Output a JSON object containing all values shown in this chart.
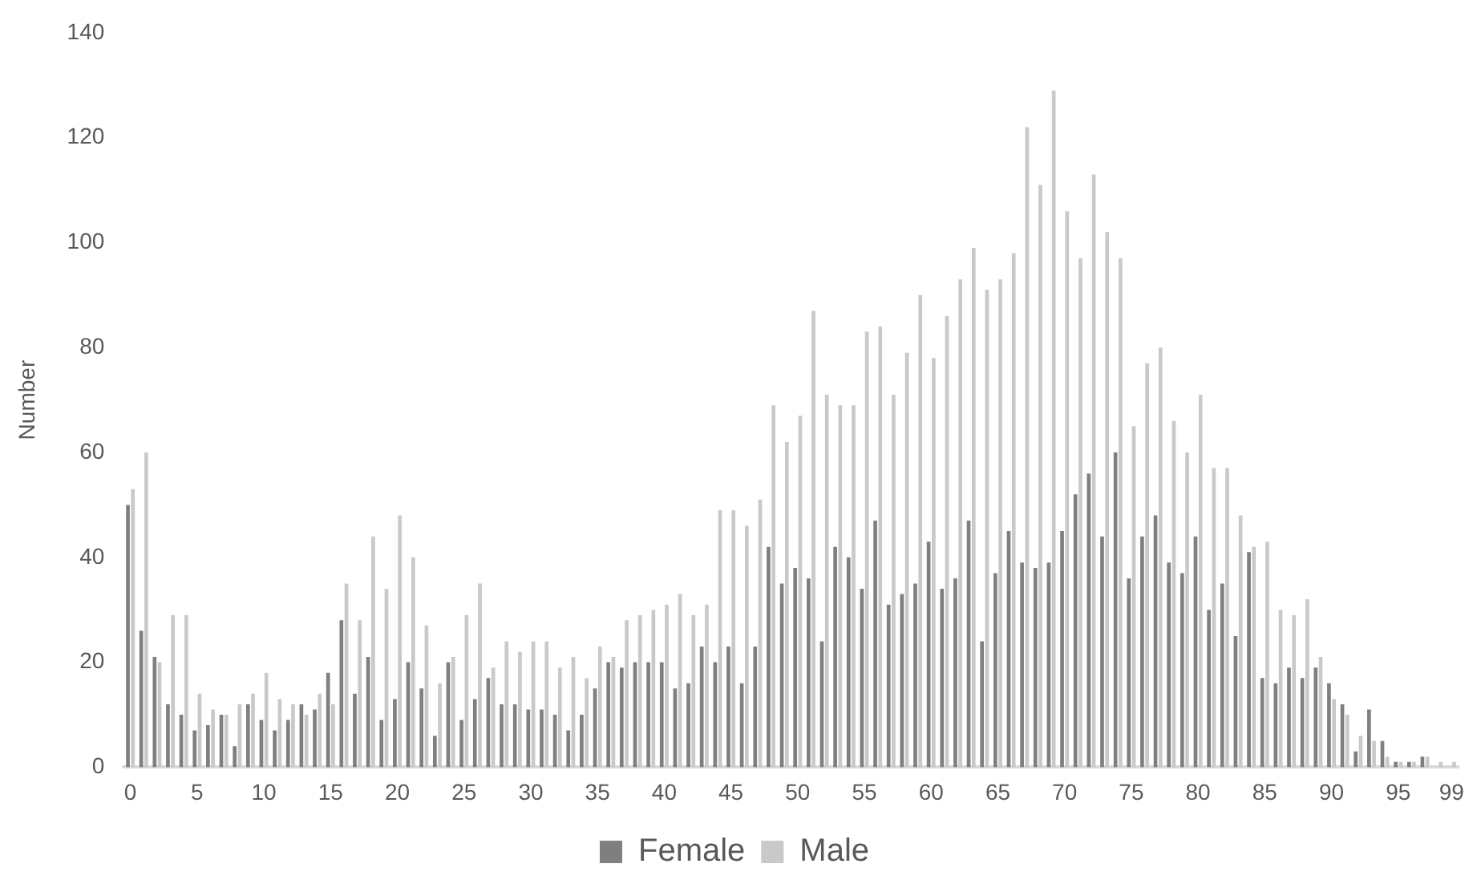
{
  "chart_data": {
    "type": "bar",
    "ylabel": "Number",
    "categories": [
      "0",
      null,
      null,
      null,
      null,
      "5",
      null,
      null,
      null,
      null,
      "10",
      null,
      null,
      null,
      null,
      "15",
      null,
      null,
      null,
      null,
      "20",
      null,
      null,
      null,
      null,
      "25",
      null,
      null,
      null,
      null,
      "30",
      null,
      null,
      null,
      null,
      "35",
      null,
      null,
      null,
      null,
      "40",
      null,
      null,
      null,
      null,
      "45",
      null,
      null,
      null,
      null,
      "50",
      null,
      null,
      null,
      null,
      "55",
      null,
      null,
      null,
      null,
      "60",
      null,
      null,
      null,
      null,
      "65",
      null,
      null,
      null,
      null,
      "70",
      null,
      null,
      null,
      null,
      "75",
      null,
      null,
      null,
      null,
      "80",
      null,
      null,
      null,
      null,
      "85",
      null,
      null,
      null,
      null,
      "90",
      null,
      null,
      null,
      null,
      "95",
      null,
      null,
      null,
      "99"
    ],
    "series": [
      {
        "name": "Female",
        "color": "#7f7f7f",
        "values": [
          50,
          26,
          21,
          12,
          10,
          7,
          8,
          10,
          4,
          12,
          9,
          7,
          9,
          12,
          11,
          18,
          28,
          14,
          21,
          9,
          13,
          20,
          15,
          6,
          20,
          9,
          13,
          17,
          12,
          12,
          11,
          11,
          10,
          7,
          10,
          15,
          20,
          19,
          20,
          20,
          20,
          15,
          16,
          23,
          20,
          23,
          16,
          23,
          42,
          35,
          38,
          36,
          24,
          42,
          40,
          34,
          47,
          31,
          33,
          35,
          43,
          34,
          36,
          47,
          24,
          37,
          45,
          39,
          38,
          39,
          45,
          52,
          56,
          44,
          60,
          36,
          44,
          48,
          39,
          37,
          44,
          30,
          35,
          25,
          41,
          17,
          16,
          19,
          17,
          19,
          16,
          12,
          3,
          11,
          5,
          1,
          1,
          2,
          0,
          0
        ]
      },
      {
        "name": "Male",
        "color": "#c9c9c9",
        "values": [
          53,
          60,
          20,
          29,
          29,
          14,
          11,
          10,
          12,
          14,
          18,
          13,
          12,
          10,
          14,
          12,
          35,
          28,
          44,
          34,
          48,
          40,
          27,
          16,
          21,
          29,
          35,
          19,
          24,
          22,
          24,
          24,
          19,
          21,
          17,
          23,
          21,
          28,
          29,
          30,
          31,
          33,
          29,
          31,
          49,
          49,
          46,
          51,
          69,
          62,
          67,
          87,
          71,
          69,
          69,
          83,
          84,
          71,
          79,
          90,
          78,
          86,
          93,
          99,
          91,
          93,
          98,
          122,
          111,
          129,
          106,
          97,
          113,
          102,
          97,
          65,
          77,
          80,
          66,
          60,
          71,
          57,
          57,
          48,
          42,
          43,
          30,
          29,
          32,
          21,
          13,
          10,
          6,
          5,
          2,
          1,
          1,
          2,
          1,
          1
        ]
      }
    ],
    "ylim": [
      0,
      140
    ],
    "yticks": [
      0,
      20,
      40,
      60,
      80,
      100,
      120,
      140
    ],
    "grid": false,
    "legend": "bottom"
  }
}
